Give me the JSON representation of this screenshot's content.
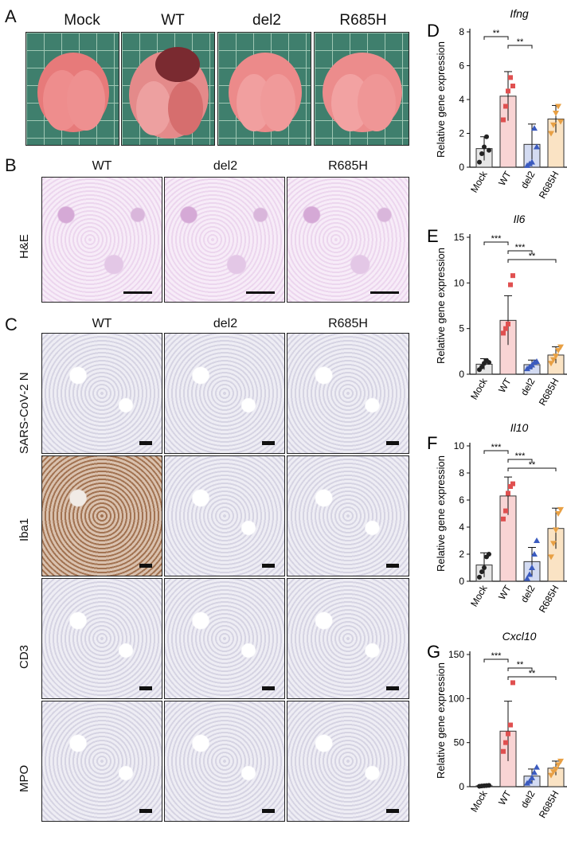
{
  "panels": {
    "A": {
      "letter": "A",
      "columns": [
        "Mock",
        "WT",
        "del2",
        "R685H"
      ]
    },
    "B": {
      "letter": "B",
      "columns": [
        "WT",
        "del2",
        "R685H"
      ],
      "row_label": "H&E"
    },
    "C": {
      "letter": "C",
      "columns": [
        "WT",
        "del2",
        "R685H"
      ],
      "rows": [
        "SARS-CoV-2 N",
        "Iba1",
        "CD3",
        "MPO"
      ]
    }
  },
  "chart_data": [
    {
      "panel": "D",
      "type": "bar",
      "title": "Ifng",
      "ylabel": "Relative gene expression",
      "categories": [
        "Mock",
        "WT",
        "del2",
        "R685H"
      ],
      "values": [
        1.1,
        4.2,
        1.35,
        2.85
      ],
      "err": [
        0.7,
        1.45,
        1.2,
        0.8
      ],
      "ylim": [
        0,
        8
      ],
      "yticks": [
        0,
        2,
        4,
        6,
        8
      ],
      "points": [
        [
          0.3,
          0.8,
          1.2,
          1.8,
          1.0
        ],
        [
          2.8,
          3.6,
          4.5,
          5.3,
          4.8
        ],
        [
          0.1,
          0.2,
          0.3,
          2.3,
          1.2
        ],
        [
          2.0,
          2.5,
          3.2,
          3.6,
          2.7
        ]
      ],
      "significance": [
        {
          "from": 0,
          "to": 1,
          "label": "**"
        },
        {
          "from": 1,
          "to": 2,
          "label": "**"
        }
      ]
    },
    {
      "panel": "E",
      "type": "bar",
      "title": "Il6",
      "ylabel": "Relative gene expression",
      "categories": [
        "Mock",
        "WT",
        "del2",
        "R685H"
      ],
      "values": [
        1.1,
        5.9,
        1.05,
        2.1
      ],
      "err": [
        0.6,
        2.7,
        0.5,
        0.9
      ],
      "ylim": [
        0,
        15
      ],
      "yticks": [
        0,
        5,
        10,
        15
      ],
      "points": [
        [
          0.5,
          0.8,
          1.2,
          1.5,
          1.3
        ],
        [
          4.5,
          5.0,
          5.5,
          9.8,
          10.8
        ],
        [
          0.6,
          0.8,
          1.0,
          1.3,
          1.4
        ],
        [
          1.2,
          1.6,
          2.0,
          2.6,
          3.0
        ]
      ],
      "significance": [
        {
          "from": 0,
          "to": 1,
          "label": "***"
        },
        {
          "from": 1,
          "to": 2,
          "label": "***"
        },
        {
          "from": 1,
          "to": 3,
          "label": "**"
        }
      ]
    },
    {
      "panel": "F",
      "type": "bar",
      "title": "Il10",
      "ylabel": "Relative gene expression",
      "categories": [
        "Mock",
        "WT",
        "del2",
        "R685H"
      ],
      "values": [
        1.2,
        6.3,
        1.45,
        3.9
      ],
      "err": [
        0.9,
        1.4,
        1.05,
        1.5
      ],
      "ylim": [
        0,
        10
      ],
      "yticks": [
        0,
        2,
        4,
        6,
        8,
        10
      ],
      "points": [
        [
          0.3,
          0.7,
          1.0,
          1.8,
          2.0
        ],
        [
          4.6,
          5.2,
          6.5,
          7.0,
          7.2
        ],
        [
          0.2,
          0.5,
          1.0,
          2.0,
          3.0
        ],
        [
          1.8,
          2.8,
          3.8,
          5.0,
          5.3
        ]
      ],
      "significance": [
        {
          "from": 0,
          "to": 1,
          "label": "***"
        },
        {
          "from": 1,
          "to": 2,
          "label": "***"
        },
        {
          "from": 1,
          "to": 3,
          "label": "**"
        }
      ]
    },
    {
      "panel": "G",
      "type": "bar",
      "title": "Cxcl10",
      "ylabel": "Relative gene expression",
      "categories": [
        "Mock",
        "WT",
        "del2",
        "R685H"
      ],
      "values": [
        1,
        63,
        12,
        21
      ],
      "err": [
        0.5,
        34,
        8,
        8
      ],
      "ylim": [
        0,
        150
      ],
      "yticks": [
        0,
        50,
        100,
        150
      ],
      "points": [
        [
          0.5,
          0.8,
          1.0,
          1.2,
          1.5
        ],
        [
          40,
          50,
          60,
          70,
          118
        ],
        [
          4,
          6,
          10,
          16,
          22
        ],
        [
          13,
          17,
          20,
          25,
          29
        ]
      ],
      "significance": [
        {
          "from": 0,
          "to": 1,
          "label": "***"
        },
        {
          "from": 1,
          "to": 2,
          "label": "**"
        },
        {
          "from": 1,
          "to": 3,
          "label": "**"
        }
      ]
    }
  ],
  "colors": {
    "Mock": "#222222",
    "WT": "#e05050",
    "del2": "#3b5bbf",
    "R685H": "#e8a044",
    "bar_Mock": "#e6e6e6",
    "bar_WT": "#f9d4d4",
    "bar_del2": "#d3dbf2",
    "bar_R685H": "#fae3c4"
  }
}
